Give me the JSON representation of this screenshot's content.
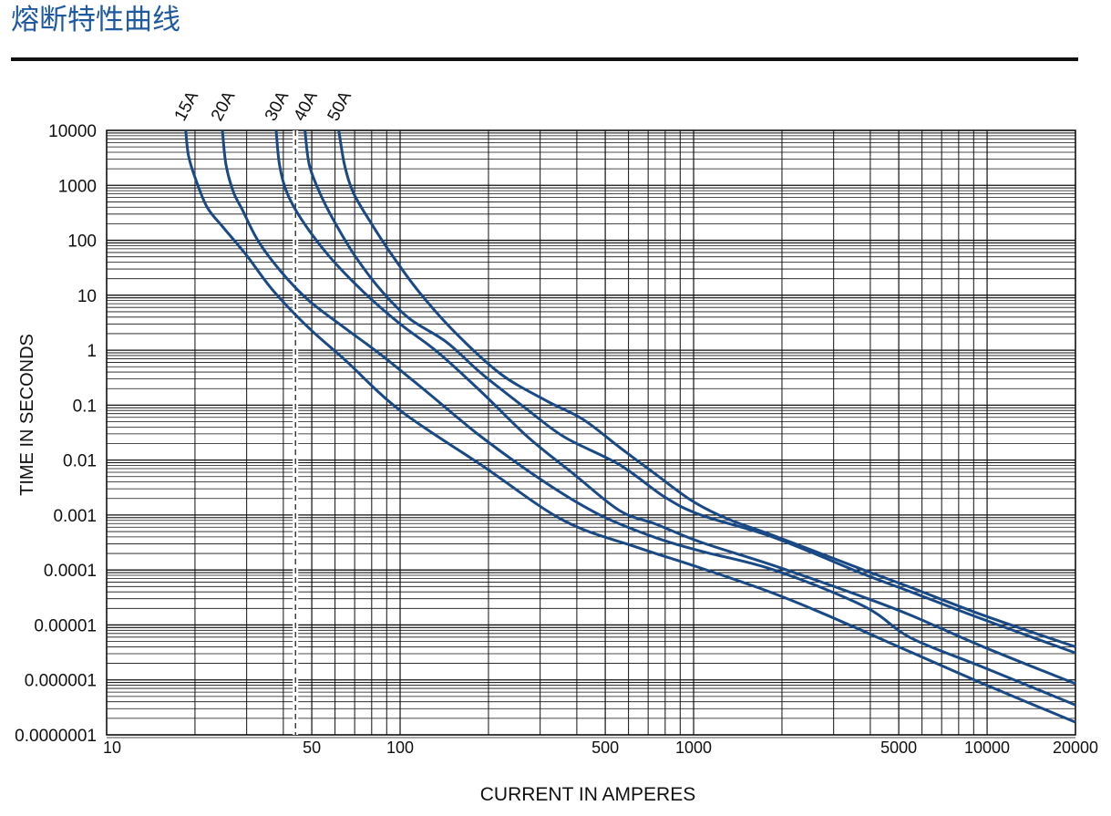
{
  "chart_data": {
    "type": "line",
    "title": "熔断特性曲线",
    "xlabel": "CURRENT IN AMPERES",
    "ylabel": "TIME IN SECONDS",
    "xscale": "log",
    "yscale": "log",
    "grid": true,
    "minor_grid": true,
    "xlim": [
      10,
      20000
    ],
    "ylim": [
      1e-07,
      10000
    ],
    "xticks": [
      10,
      50,
      100,
      500,
      1000,
      5000,
      10000,
      20000
    ],
    "yticks": [
      {
        "value": 1e-07,
        "label": "0.0000001"
      },
      1e-06,
      1e-05,
      0.0001,
      0.001,
      0.01,
      0.1,
      1,
      10,
      100,
      1000,
      10000
    ],
    "dashed_line_x": 44,
    "series": [
      {
        "name": "15A",
        "color": "#1a4a86",
        "x": [
          18.6,
          19,
          20,
          22,
          25,
          30,
          37,
          49,
          65,
          100,
          190,
          360,
          640,
          1000,
          1750,
          2700,
          5500,
          9700,
          20000
        ],
        "values": [
          10000,
          3500,
          1400,
          400,
          170,
          53,
          12,
          2.5,
          0.66,
          0.08,
          0.008,
          0.0008,
          0.00026,
          0.00012,
          4.3e-05,
          1.7e-05,
          3.2e-06,
          8.5e-07,
          1.7e-07
        ]
      },
      {
        "name": "20A",
        "color": "#1a4a86",
        "x": [
          24.8,
          25.5,
          27,
          29,
          33,
          40,
          49,
          65,
          87,
          124,
          190,
          315,
          480,
          740,
          1060,
          1880,
          3800,
          5500,
          9700,
          20000
        ],
        "values": [
          10000,
          2400,
          770,
          360,
          93,
          24,
          7.9,
          2.5,
          0.79,
          0.17,
          0.026,
          0.0038,
          0.001,
          0.00039,
          0.00022,
          0.0001,
          2.2e-05,
          5.8e-06,
          1.7e-06,
          3.5e-07
        ]
      },
      {
        "name": "30A",
        "color": "#1a4a86",
        "x": [
          37.8,
          38.8,
          41,
          46,
          57,
          75,
          100,
          134,
          190,
          273,
          390,
          560,
          740,
          1060,
          1880,
          3800,
          5500,
          9700,
          20000
        ],
        "values": [
          10000,
          2400,
          770,
          245,
          53,
          11.5,
          3,
          0.93,
          0.17,
          0.026,
          0.0056,
          0.0012,
          0.00069,
          0.00032,
          0.00012,
          3.2e-05,
          1.5e-05,
          4e-06,
          8.5e-07
        ]
      },
      {
        "name": "40A",
        "color": "#1a4a86",
        "x": [
          47.4,
          49,
          53,
          59,
          70,
          87,
          108,
          144,
          190,
          273,
          364,
          560,
          800,
          1060,
          1880,
          3800,
          5500,
          9700,
          20000
        ],
        "values": [
          10000,
          2400,
          770,
          245,
          53,
          11.5,
          3.7,
          1.4,
          0.37,
          0.081,
          0.026,
          0.0082,
          0.0021,
          0.001,
          0.00039,
          8.4e-05,
          4e-05,
          1.26e-05,
          3.1e-06
        ]
      },
      {
        "name": "50A",
        "color": "#1a4a86",
        "x": [
          61.8,
          64.6,
          69,
          78,
          94,
          116,
          154,
          220,
          315,
          420,
          560,
          740,
          990,
          1320,
          1880,
          3800,
          5500,
          9700,
          20000
        ],
        "values": [
          10000,
          2400,
          770,
          245,
          53,
          11.5,
          2.1,
          0.37,
          0.12,
          0.055,
          0.017,
          0.0056,
          0.0018,
          0.00083,
          0.00042,
          0.0001,
          4.8e-05,
          1.5e-05,
          4e-06
        ]
      }
    ]
  }
}
